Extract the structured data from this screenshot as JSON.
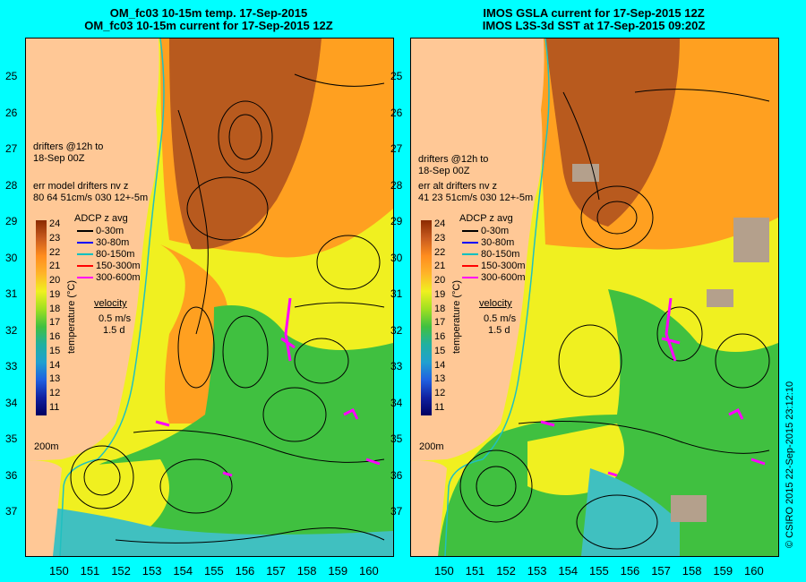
{
  "left_panel": {
    "title_line1": "OM_fc03 10-15m temp. 17-Sep-2015",
    "title_line2": "OM_fc03 10-15m current for 17-Sep-2015 12Z",
    "drifters_line1": "drifters @12h to",
    "drifters_line2": "18-Sep 00Z",
    "err_line1": "err model drifters nv z",
    "err_line2": "80 64 51cm/s 030 12+-5m"
  },
  "right_panel": {
    "title_line1": "IMOS GSLA current for 17-Sep-2015 12Z",
    "title_line2": "IMOS L3S-3d SST at 17-Sep-2015 09:20Z",
    "drifters_line1": "drifters @12h to",
    "drifters_line2": "18-Sep 00Z",
    "err_line1": "err alt drifters nv z",
    "err_line2": "41 23 51cm/s 030 12+-5m"
  },
  "legend": {
    "title": "ADCP z avg",
    "items": [
      {
        "label": "0-30m",
        "color": "#000000"
      },
      {
        "label": "30-80m",
        "color": "#0000FF"
      },
      {
        "label": "80-150m",
        "color": "#00C0C0"
      },
      {
        "label": "150-300m",
        "color": "#FF0000"
      },
      {
        "label": "300-600m",
        "color": "#FF00FF"
      }
    ]
  },
  "velocity": {
    "title": "velocity",
    "line1": "0.5 m/s",
    "line2": "1.5 d"
  },
  "isobath_label": "200m",
  "colorbar": {
    "label": "temperature (°C)",
    "ticks": [
      "24",
      "23",
      "22",
      "21",
      "20",
      "19",
      "18",
      "17",
      "16",
      "15",
      "14",
      "13",
      "12",
      "11"
    ]
  },
  "lat_labels": [
    "25",
    "26",
    "27",
    "28",
    "29",
    "30",
    "31",
    "32",
    "33",
    "34",
    "35",
    "36",
    "37"
  ],
  "lon_labels": [
    "150",
    "151",
    "152",
    "153",
    "154",
    "155",
    "156",
    "157",
    "158",
    "159",
    "160"
  ],
  "copyright": "© CSIRO 2015  22-Sep-2015 23:12:10",
  "colors": {
    "background": "#00FFFF",
    "land": "#FFC896",
    "warm": "#B85A1E",
    "mid": "#FFA020",
    "yellow": "#F0F020",
    "green": "#40C040",
    "cyan": "#40C0C0"
  }
}
